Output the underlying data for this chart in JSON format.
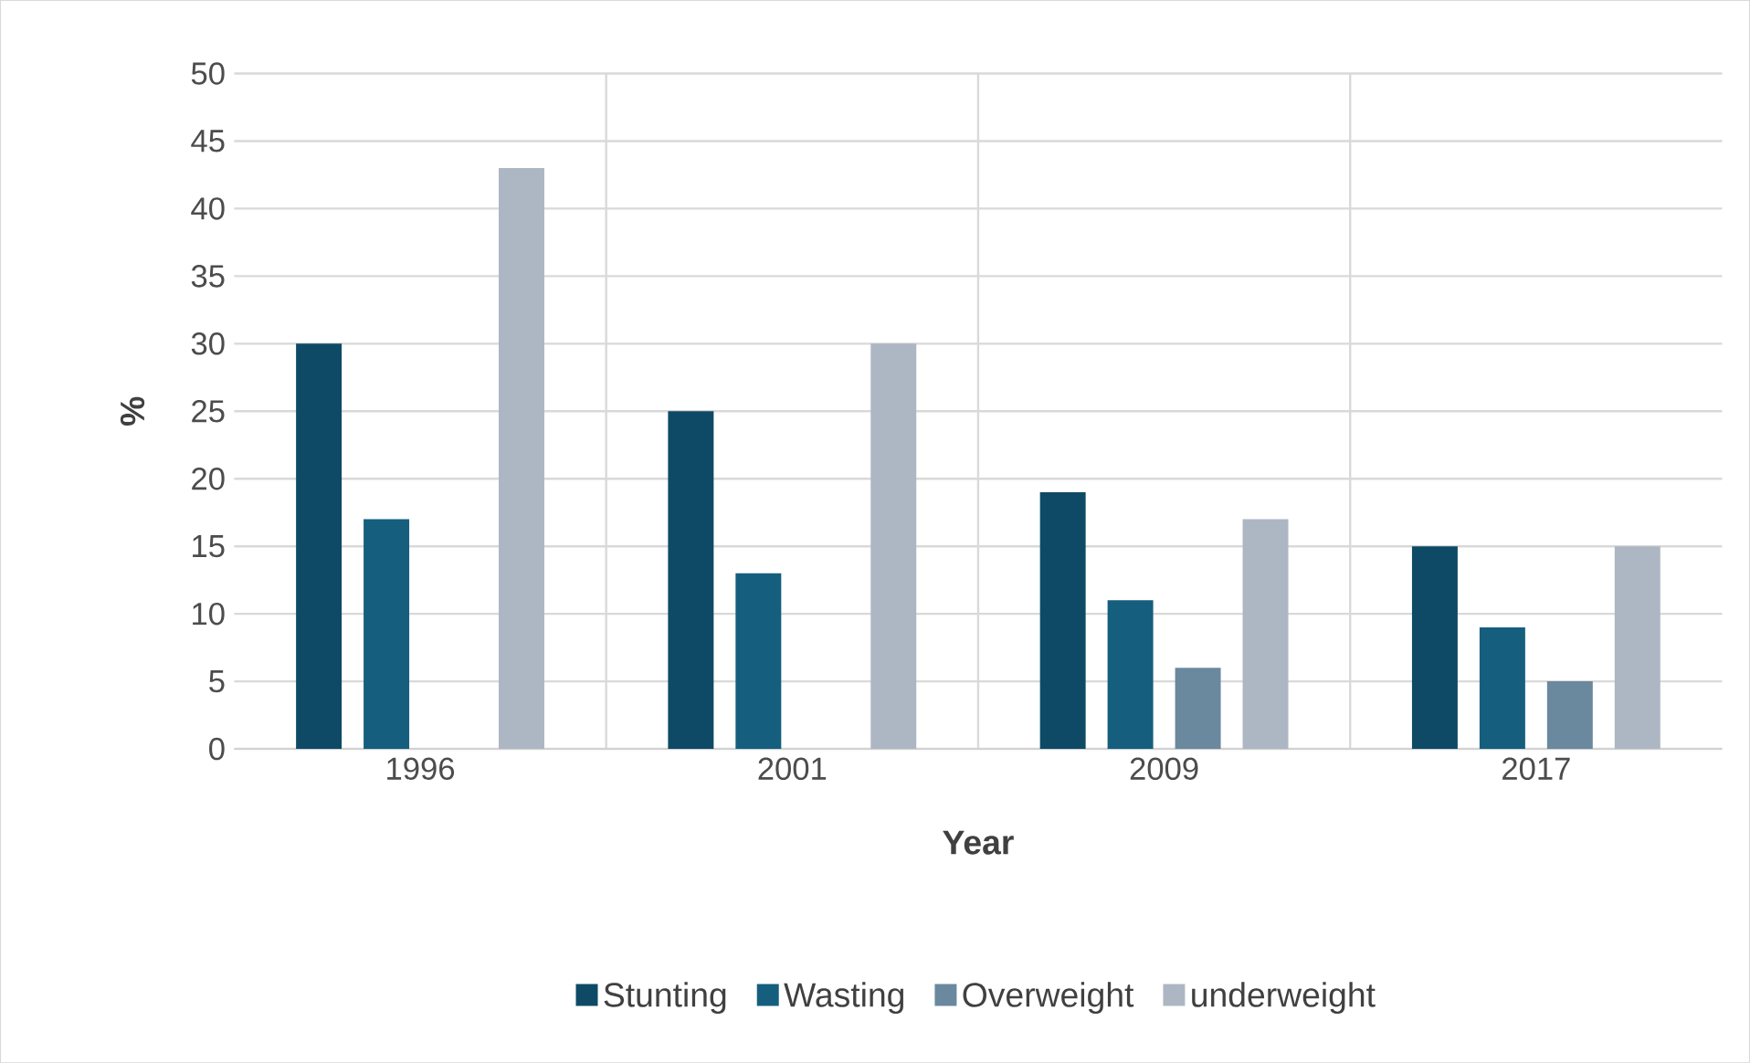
{
  "chart_data": {
    "type": "bar",
    "xlabel": "Year",
    "ylabel": "%",
    "categories": [
      "1996",
      "2001",
      "2009",
      "2017"
    ],
    "series": [
      {
        "name": "Stunting",
        "color": "#0e4a66",
        "values": [
          30,
          25,
          19,
          15
        ]
      },
      {
        "name": "Wasting",
        "color": "#155e7e",
        "values": [
          17,
          13,
          11,
          9
        ]
      },
      {
        "name": "Overweight",
        "color": "#6a889e",
        "values": [
          null,
          null,
          6,
          5
        ]
      },
      {
        "name": "underweight",
        "color": "#adb7c3",
        "values": [
          43,
          30,
          17,
          15
        ]
      }
    ],
    "ylim": [
      0,
      50
    ],
    "yticks": [
      0,
      5,
      10,
      15,
      20,
      25,
      30,
      35,
      40,
      45,
      50
    ],
    "grid": true,
    "legend": "bottom"
  }
}
